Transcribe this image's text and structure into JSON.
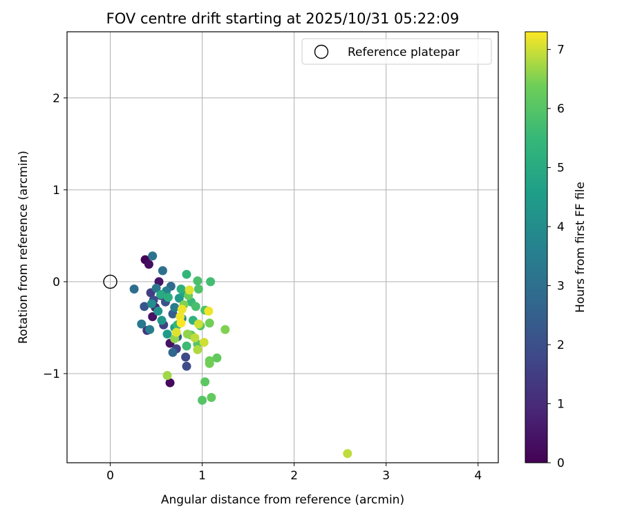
{
  "chart_data": {
    "type": "scatter",
    "title": "FOV centre drift starting at 2025/10/31 05:22:09",
    "xlabel": "Angular distance from reference (arcmin)",
    "ylabel": "Rotation from reference (arcmin)",
    "xlim": [
      -0.47,
      4.22
    ],
    "ylim": [
      -1.97,
      2.72
    ],
    "xticks": [
      0,
      1,
      2,
      3,
      4
    ],
    "yticks": [
      -1,
      0,
      1,
      2
    ],
    "xtick_labels": [
      "0",
      "1",
      "2",
      "3",
      "4"
    ],
    "ytick_labels": [
      "−1",
      "0",
      "1",
      "2"
    ],
    "grid": true,
    "legend": {
      "placement": "upper right",
      "entry": "Reference platepar"
    },
    "reference_point": {
      "x": 0,
      "y": 0
    },
    "colorbar": {
      "label": "Hours from first FF file",
      "min": 0,
      "max": 7.3,
      "ticks": [
        0,
        1,
        2,
        3,
        4,
        5,
        6,
        7
      ],
      "tick_labels": [
        "0",
        "1",
        "2",
        "3",
        "4",
        "5",
        "6",
        "7"
      ],
      "colormap": "viridis"
    },
    "points": [
      {
        "x": 0.38,
        "y": 0.24,
        "h": 0.1
      },
      {
        "x": 0.42,
        "y": 0.19,
        "h": 0.3
      },
      {
        "x": 0.53,
        "y": 0.0,
        "h": 0.5
      },
      {
        "x": 0.46,
        "y": -0.38,
        "h": 0.4
      },
      {
        "x": 0.65,
        "y": -0.67,
        "h": 0.4
      },
      {
        "x": 0.65,
        "y": -1.1,
        "h": 0.2
      },
      {
        "x": 0.49,
        "y": -0.28,
        "h": 0.9
      },
      {
        "x": 0.4,
        "y": -0.53,
        "h": 1.2
      },
      {
        "x": 0.58,
        "y": -0.47,
        "h": 1.6
      },
      {
        "x": 0.72,
        "y": -0.73,
        "h": 1.6
      },
      {
        "x": 0.82,
        "y": -0.82,
        "h": 1.8
      },
      {
        "x": 0.83,
        "y": -0.92,
        "h": 1.9
      },
      {
        "x": 0.44,
        "y": -0.12,
        "h": 1.5
      },
      {
        "x": 0.47,
        "y": -0.2,
        "h": 1.9
      },
      {
        "x": 0.55,
        "y": -0.15,
        "h": 1.4
      },
      {
        "x": 0.6,
        "y": -0.22,
        "h": 2.1
      },
      {
        "x": 0.68,
        "y": -0.35,
        "h": 2.4
      },
      {
        "x": 0.37,
        "y": -0.27,
        "h": 2.2
      },
      {
        "x": 0.68,
        "y": -0.77,
        "h": 2.7
      },
      {
        "x": 0.73,
        "y": -0.6,
        "h": 2.6
      },
      {
        "x": 0.26,
        "y": -0.08,
        "h": 2.9
      },
      {
        "x": 0.46,
        "y": 0.28,
        "h": 3.1
      },
      {
        "x": 0.57,
        "y": 0.12,
        "h": 3.0
      },
      {
        "x": 0.66,
        "y": -0.05,
        "h": 2.8
      },
      {
        "x": 0.34,
        "y": -0.46,
        "h": 3.3
      },
      {
        "x": 0.43,
        "y": -0.52,
        "h": 3.5
      },
      {
        "x": 0.5,
        "y": -0.07,
        "h": 3.2
      },
      {
        "x": 0.61,
        "y": -0.1,
        "h": 3.6
      },
      {
        "x": 0.7,
        "y": -0.28,
        "h": 3.4
      },
      {
        "x": 0.78,
        "y": -0.4,
        "h": 3.8
      },
      {
        "x": 0.45,
        "y": -0.24,
        "h": 4.0
      },
      {
        "x": 0.52,
        "y": -0.32,
        "h": 4.2
      },
      {
        "x": 0.56,
        "y": -0.42,
        "h": 4.3
      },
      {
        "x": 0.62,
        "y": -0.57,
        "h": 4.5
      },
      {
        "x": 0.7,
        "y": -0.5,
        "h": 4.6
      },
      {
        "x": 0.75,
        "y": -0.18,
        "h": 4.4
      },
      {
        "x": 0.8,
        "y": -0.12,
        "h": 4.7
      },
      {
        "x": 0.55,
        "y": -0.14,
        "h": 5.0
      },
      {
        "x": 0.63,
        "y": -0.17,
        "h": 5.1
      },
      {
        "x": 0.77,
        "y": -0.08,
        "h": 5.2
      },
      {
        "x": 0.83,
        "y": 0.08,
        "h": 5.4
      },
      {
        "x": 0.88,
        "y": -0.22,
        "h": 5.5
      },
      {
        "x": 0.9,
        "y": -0.42,
        "h": 5.3
      },
      {
        "x": 0.83,
        "y": -0.7,
        "h": 5.6
      },
      {
        "x": 0.73,
        "y": -0.47,
        "h": 5.4
      },
      {
        "x": 0.95,
        "y": 0.01,
        "h": 5.8
      },
      {
        "x": 1.09,
        "y": 0.0,
        "h": 5.7
      },
      {
        "x": 0.96,
        "y": -0.08,
        "h": 5.9
      },
      {
        "x": 0.93,
        "y": -0.27,
        "h": 5.8
      },
      {
        "x": 1.03,
        "y": -0.31,
        "h": 5.9
      },
      {
        "x": 0.98,
        "y": -0.48,
        "h": 6.0
      },
      {
        "x": 0.88,
        "y": -0.58,
        "h": 6.1
      },
      {
        "x": 0.95,
        "y": -0.68,
        "h": 6.0
      },
      {
        "x": 1.16,
        "y": -0.83,
        "h": 6.2
      },
      {
        "x": 1.03,
        "y": -1.09,
        "h": 6.1
      },
      {
        "x": 1.0,
        "y": -1.29,
        "h": 6.0
      },
      {
        "x": 1.1,
        "y": -1.26,
        "h": 6.2
      },
      {
        "x": 1.08,
        "y": -0.86,
        "h": 6.3
      },
      {
        "x": 1.08,
        "y": -0.89,
        "h": 6.4
      },
      {
        "x": 1.08,
        "y": -0.45,
        "h": 6.4
      },
      {
        "x": 1.25,
        "y": -0.52,
        "h": 6.5
      },
      {
        "x": 0.85,
        "y": -0.15,
        "h": 6.3
      },
      {
        "x": 0.8,
        "y": -0.25,
        "h": 6.5
      },
      {
        "x": 0.84,
        "y": -0.57,
        "h": 6.6
      },
      {
        "x": 0.7,
        "y": -0.62,
        "h": 6.6
      },
      {
        "x": 0.62,
        "y": -1.02,
        "h": 6.7
      },
      {
        "x": 0.95,
        "y": -0.74,
        "h": 6.8
      },
      {
        "x": 0.92,
        "y": -0.61,
        "h": 6.9
      },
      {
        "x": 0.96,
        "y": -0.46,
        "h": 7.0
      },
      {
        "x": 0.86,
        "y": -0.09,
        "h": 7.1
      },
      {
        "x": 0.78,
        "y": -0.3,
        "h": 7.2
      },
      {
        "x": 0.76,
        "y": -0.38,
        "h": 7.2
      },
      {
        "x": 0.72,
        "y": -0.55,
        "h": 7.1
      },
      {
        "x": 1.02,
        "y": -0.66,
        "h": 7.0
      },
      {
        "x": 1.07,
        "y": -0.32,
        "h": 7.2
      },
      {
        "x": 0.77,
        "y": -0.45,
        "h": 7.3
      },
      {
        "x": 2.58,
        "y": -1.87,
        "h": 6.9
      }
    ]
  }
}
